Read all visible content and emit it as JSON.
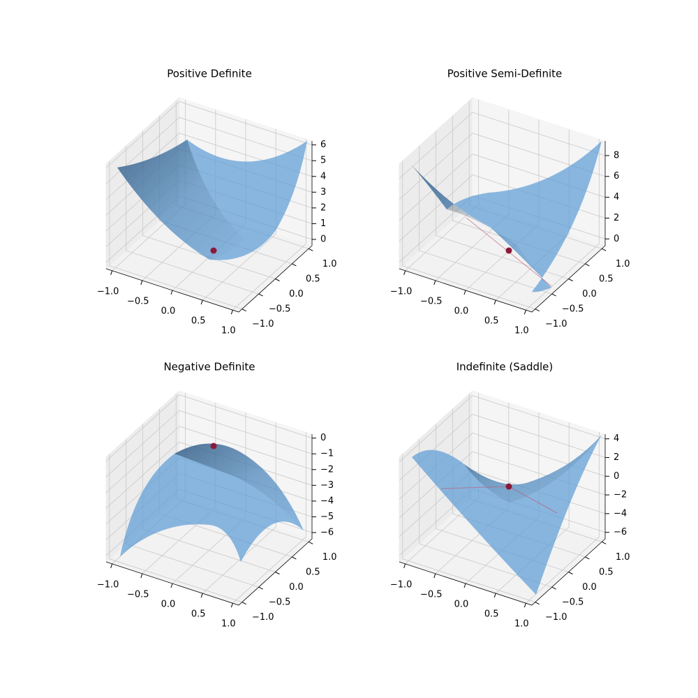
{
  "chart_data": [
    {
      "type": "surface",
      "title": "Positive Definite",
      "xlim": [
        -1.1,
        1.1
      ],
      "ylim": [
        -1.1,
        1.1
      ],
      "zlim": [
        -0.4,
        6.25
      ],
      "xticks": [
        {
          "value": -1.0,
          "label": "−1.0"
        },
        {
          "value": -0.5,
          "label": "−0.5"
        },
        {
          "value": 0.0,
          "label": "0.0"
        },
        0.5,
        {
          "value": 1.0,
          "label": "1.0"
        }
      ],
      "yticks": [
        {
          "value": -1.0,
          "label": "−1.0"
        },
        {
          "value": -0.5,
          "label": "−0.5"
        },
        {
          "value": 0.0,
          "label": "0.0"
        },
        0.5,
        {
          "value": 1.0,
          "label": "1.0"
        }
      ],
      "zticks": [
        0,
        1,
        2,
        3,
        4,
        5,
        6
      ]
    },
    {
      "type": "surface",
      "title": "Positive Semi-Definite",
      "xlim": [
        -1.1,
        1.1
      ],
      "ylim": [
        -1.1,
        1.1
      ],
      "zlim": [
        -0.65,
        9.4
      ],
      "xticks": [
        {
          "value": -1.0,
          "label": "−1.0"
        },
        {
          "value": -0.5,
          "label": "−0.5"
        },
        {
          "value": 0.0,
          "label": "0.0"
        },
        0.5,
        {
          "value": 1.0,
          "label": "1.0"
        }
      ],
      "yticks": [
        {
          "value": -1.0,
          "label": "−1.0"
        },
        {
          "value": -0.5,
          "label": "−0.5"
        },
        {
          "value": 0.0,
          "label": "0.0"
        },
        0.5,
        {
          "value": 1.0,
          "label": "1.0"
        }
      ],
      "zticks": [
        0,
        2,
        4,
        6,
        8
      ]
    },
    {
      "type": "surface",
      "title": "Negative Definite",
      "xlim": [
        -1.1,
        1.1
      ],
      "ylim": [
        -1.1,
        1.1
      ],
      "zlim": [
        -6.4,
        0.25
      ],
      "xticks": [
        {
          "value": -1.0,
          "label": "−1.0"
        },
        {
          "value": -0.5,
          "label": "−0.5"
        },
        {
          "value": 0.0,
          "label": "0.0"
        },
        0.5,
        {
          "value": 1.0,
          "label": "1.0"
        }
      ],
      "yticks": [
        {
          "value": -1.0,
          "label": "−1.0"
        },
        {
          "value": -0.5,
          "label": "−0.5"
        },
        {
          "value": 0.0,
          "label": "0.0"
        },
        0.5,
        {
          "value": 1.0,
          "label": "1.0"
        }
      ],
      "zticks": [
        {
          "value": -6,
          "label": "−6"
        },
        {
          "value": -5,
          "label": "−5"
        },
        {
          "value": -4,
          "label": "−4"
        },
        {
          "value": -3,
          "label": "−3"
        },
        {
          "value": -2,
          "label": "−2"
        },
        {
          "value": -1,
          "label": "−1"
        },
        0
      ]
    },
    {
      "type": "surface",
      "title": "Indefinite (Saddle)",
      "xlim": [
        -1.1,
        1.1
      ],
      "ylim": [
        -1.1,
        1.1
      ],
      "zlim": [
        -6.7,
        4.5
      ],
      "xticks": [
        {
          "value": -1.0,
          "label": "−1.0"
        },
        {
          "value": -0.5,
          "label": "−0.5"
        },
        {
          "value": 0.0,
          "label": "0.0"
        },
        0.5,
        {
          "value": 1.0,
          "label": "1.0"
        }
      ],
      "yticks": [
        {
          "value": -1.0,
          "label": "−1.0"
        },
        {
          "value": -0.5,
          "label": "−0.5"
        },
        {
          "value": 0.0,
          "label": "0.0"
        },
        0.5,
        {
          "value": 1.0,
          "label": "1.0"
        }
      ],
      "zticks": [
        {
          "value": -6,
          "label": "−6"
        },
        {
          "value": -4,
          "label": "−4"
        },
        {
          "value": -2,
          "label": "−2"
        },
        0,
        2,
        4
      ]
    }
  ]
}
